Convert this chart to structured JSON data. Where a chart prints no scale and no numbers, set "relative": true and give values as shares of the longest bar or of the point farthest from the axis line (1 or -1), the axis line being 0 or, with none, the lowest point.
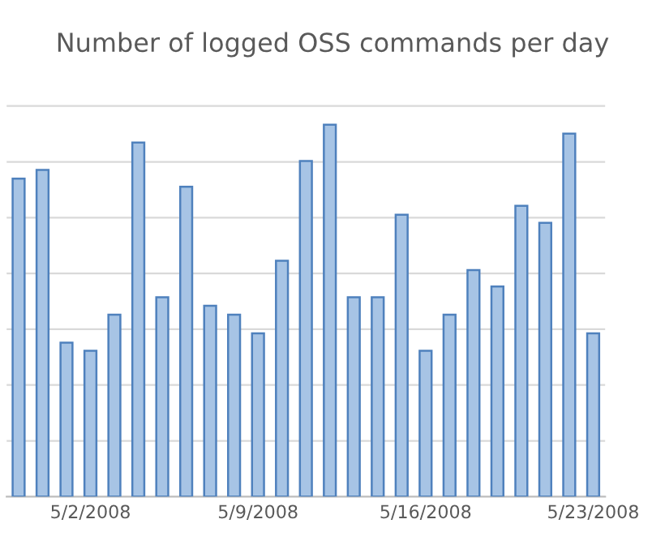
{
  "chart_data": {
    "type": "bar",
    "title": "Number of logged OSS commands per day",
    "relative": true,
    "grid": "y",
    "color": "#a7c4e5",
    "categories": [
      null,
      null,
      null,
      "5/2/2008",
      null,
      null,
      null,
      null,
      null,
      null,
      "5/9/2008",
      null,
      null,
      null,
      null,
      null,
      null,
      "5/16/2008",
      null,
      null,
      null,
      null,
      null,
      null,
      "5/23/2008"
    ],
    "values": [
      0.855,
      0.878,
      0.414,
      0.392,
      0.489,
      0.952,
      0.536,
      0.833,
      0.513,
      0.489,
      0.439,
      0.634,
      0.902,
      1,
      0.536,
      0.536,
      0.758,
      0.392,
      0.489,
      0.609,
      0.565,
      0.782,
      0.736,
      0.976,
      0.439
    ]
  }
}
